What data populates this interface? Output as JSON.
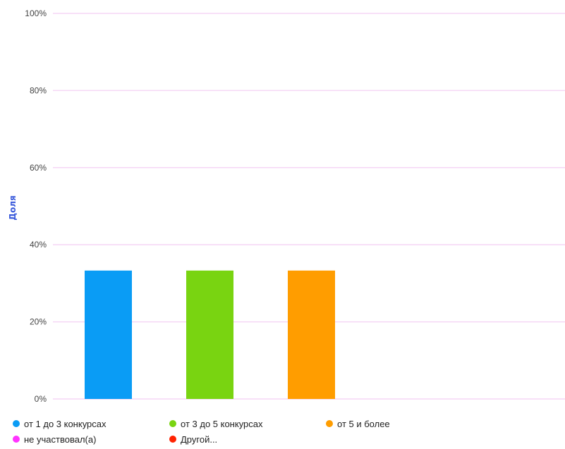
{
  "chart_data": {
    "type": "bar",
    "ylabel": "Доля",
    "ylim": [
      0,
      100
    ],
    "yticks": [
      0,
      20,
      40,
      60,
      80,
      100
    ],
    "ytick_labels": [
      "0%",
      "20%",
      "40%",
      "60%",
      "80%",
      "100%"
    ],
    "categories": [
      "от 1 до 3 конкурсах",
      "от 3 до 5 конкурсах",
      "от 5 и более",
      "не участвовал(а)",
      "Другой..."
    ],
    "values": [
      33.3,
      33.3,
      33.3,
      0,
      0
    ],
    "colors": [
      "#0a9cf5",
      "#79d411",
      "#ff9d00",
      "#ff33ff",
      "#ff2200"
    ],
    "grid": true,
    "gridline_color": "#f5d6f5",
    "legend_position": "bottom",
    "legend": [
      {
        "label": "от 1 до 3 конкурсах",
        "color": "#0a9cf5"
      },
      {
        "label": "от 3 до 5 конкурсах",
        "color": "#79d411"
      },
      {
        "label": "от 5 и более",
        "color": "#ff9d00"
      },
      {
        "label": "не участвовал(а)",
        "color": "#ff33ff"
      },
      {
        "label": "Другой...",
        "color": "#ff2200"
      }
    ]
  }
}
